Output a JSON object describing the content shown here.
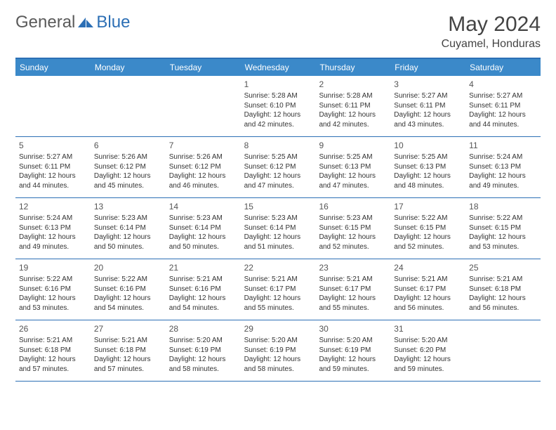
{
  "logo": {
    "general": "General",
    "blue": "Blue"
  },
  "title": "May 2024",
  "location": "Cuyamel, Honduras",
  "weekdays": [
    "Sunday",
    "Monday",
    "Tuesday",
    "Wednesday",
    "Thursday",
    "Friday",
    "Saturday"
  ],
  "colors": {
    "header_bg": "#3b89c9",
    "border": "#2c6fb5",
    "text": "#333333",
    "title": "#444444"
  },
  "weeks": [
    [
      {
        "n": "",
        "sr": "",
        "ss": "",
        "dl": ""
      },
      {
        "n": "",
        "sr": "",
        "ss": "",
        "dl": ""
      },
      {
        "n": "",
        "sr": "",
        "ss": "",
        "dl": ""
      },
      {
        "n": "1",
        "sr": "Sunrise: 5:28 AM",
        "ss": "Sunset: 6:10 PM",
        "dl": "Daylight: 12 hours and 42 minutes."
      },
      {
        "n": "2",
        "sr": "Sunrise: 5:28 AM",
        "ss": "Sunset: 6:11 PM",
        "dl": "Daylight: 12 hours and 42 minutes."
      },
      {
        "n": "3",
        "sr": "Sunrise: 5:27 AM",
        "ss": "Sunset: 6:11 PM",
        "dl": "Daylight: 12 hours and 43 minutes."
      },
      {
        "n": "4",
        "sr": "Sunrise: 5:27 AM",
        "ss": "Sunset: 6:11 PM",
        "dl": "Daylight: 12 hours and 44 minutes."
      }
    ],
    [
      {
        "n": "5",
        "sr": "Sunrise: 5:27 AM",
        "ss": "Sunset: 6:11 PM",
        "dl": "Daylight: 12 hours and 44 minutes."
      },
      {
        "n": "6",
        "sr": "Sunrise: 5:26 AM",
        "ss": "Sunset: 6:12 PM",
        "dl": "Daylight: 12 hours and 45 minutes."
      },
      {
        "n": "7",
        "sr": "Sunrise: 5:26 AM",
        "ss": "Sunset: 6:12 PM",
        "dl": "Daylight: 12 hours and 46 minutes."
      },
      {
        "n": "8",
        "sr": "Sunrise: 5:25 AM",
        "ss": "Sunset: 6:12 PM",
        "dl": "Daylight: 12 hours and 47 minutes."
      },
      {
        "n": "9",
        "sr": "Sunrise: 5:25 AM",
        "ss": "Sunset: 6:13 PM",
        "dl": "Daylight: 12 hours and 47 minutes."
      },
      {
        "n": "10",
        "sr": "Sunrise: 5:25 AM",
        "ss": "Sunset: 6:13 PM",
        "dl": "Daylight: 12 hours and 48 minutes."
      },
      {
        "n": "11",
        "sr": "Sunrise: 5:24 AM",
        "ss": "Sunset: 6:13 PM",
        "dl": "Daylight: 12 hours and 49 minutes."
      }
    ],
    [
      {
        "n": "12",
        "sr": "Sunrise: 5:24 AM",
        "ss": "Sunset: 6:13 PM",
        "dl": "Daylight: 12 hours and 49 minutes."
      },
      {
        "n": "13",
        "sr": "Sunrise: 5:23 AM",
        "ss": "Sunset: 6:14 PM",
        "dl": "Daylight: 12 hours and 50 minutes."
      },
      {
        "n": "14",
        "sr": "Sunrise: 5:23 AM",
        "ss": "Sunset: 6:14 PM",
        "dl": "Daylight: 12 hours and 50 minutes."
      },
      {
        "n": "15",
        "sr": "Sunrise: 5:23 AM",
        "ss": "Sunset: 6:14 PM",
        "dl": "Daylight: 12 hours and 51 minutes."
      },
      {
        "n": "16",
        "sr": "Sunrise: 5:23 AM",
        "ss": "Sunset: 6:15 PM",
        "dl": "Daylight: 12 hours and 52 minutes."
      },
      {
        "n": "17",
        "sr": "Sunrise: 5:22 AM",
        "ss": "Sunset: 6:15 PM",
        "dl": "Daylight: 12 hours and 52 minutes."
      },
      {
        "n": "18",
        "sr": "Sunrise: 5:22 AM",
        "ss": "Sunset: 6:15 PM",
        "dl": "Daylight: 12 hours and 53 minutes."
      }
    ],
    [
      {
        "n": "19",
        "sr": "Sunrise: 5:22 AM",
        "ss": "Sunset: 6:16 PM",
        "dl": "Daylight: 12 hours and 53 minutes."
      },
      {
        "n": "20",
        "sr": "Sunrise: 5:22 AM",
        "ss": "Sunset: 6:16 PM",
        "dl": "Daylight: 12 hours and 54 minutes."
      },
      {
        "n": "21",
        "sr": "Sunrise: 5:21 AM",
        "ss": "Sunset: 6:16 PM",
        "dl": "Daylight: 12 hours and 54 minutes."
      },
      {
        "n": "22",
        "sr": "Sunrise: 5:21 AM",
        "ss": "Sunset: 6:17 PM",
        "dl": "Daylight: 12 hours and 55 minutes."
      },
      {
        "n": "23",
        "sr": "Sunrise: 5:21 AM",
        "ss": "Sunset: 6:17 PM",
        "dl": "Daylight: 12 hours and 55 minutes."
      },
      {
        "n": "24",
        "sr": "Sunrise: 5:21 AM",
        "ss": "Sunset: 6:17 PM",
        "dl": "Daylight: 12 hours and 56 minutes."
      },
      {
        "n": "25",
        "sr": "Sunrise: 5:21 AM",
        "ss": "Sunset: 6:18 PM",
        "dl": "Daylight: 12 hours and 56 minutes."
      }
    ],
    [
      {
        "n": "26",
        "sr": "Sunrise: 5:21 AM",
        "ss": "Sunset: 6:18 PM",
        "dl": "Daylight: 12 hours and 57 minutes."
      },
      {
        "n": "27",
        "sr": "Sunrise: 5:21 AM",
        "ss": "Sunset: 6:18 PM",
        "dl": "Daylight: 12 hours and 57 minutes."
      },
      {
        "n": "28",
        "sr": "Sunrise: 5:20 AM",
        "ss": "Sunset: 6:19 PM",
        "dl": "Daylight: 12 hours and 58 minutes."
      },
      {
        "n": "29",
        "sr": "Sunrise: 5:20 AM",
        "ss": "Sunset: 6:19 PM",
        "dl": "Daylight: 12 hours and 58 minutes."
      },
      {
        "n": "30",
        "sr": "Sunrise: 5:20 AM",
        "ss": "Sunset: 6:19 PM",
        "dl": "Daylight: 12 hours and 59 minutes."
      },
      {
        "n": "31",
        "sr": "Sunrise: 5:20 AM",
        "ss": "Sunset: 6:20 PM",
        "dl": "Daylight: 12 hours and 59 minutes."
      },
      {
        "n": "",
        "sr": "",
        "ss": "",
        "dl": ""
      }
    ]
  ]
}
